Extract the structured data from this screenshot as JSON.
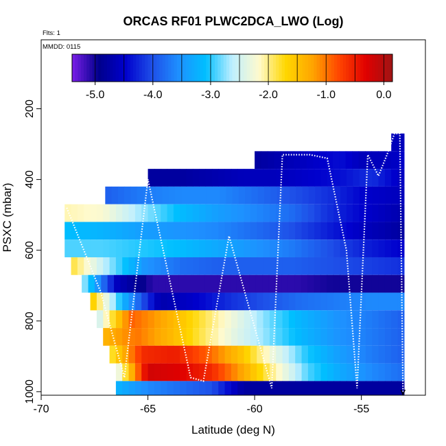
{
  "chart_data": {
    "type": "heatmap",
    "title": "ORCAS RF01 PLWC2DCA_LWO (Log)",
    "flights_note": "Flts: 1",
    "date_note": "MMDD: 0115",
    "xlabel": "Latitude (deg N)",
    "ylabel": "PSXC (mbar)",
    "xlim": [
      -70,
      -52
    ],
    "ylim": [
      1010,
      1
    ],
    "x_ticks": [
      -70,
      -65,
      -60,
      -55
    ],
    "x_tick_labels": [
      "-70",
      "-65",
      "-60",
      "-55"
    ],
    "y_ticks": [
      200,
      400,
      600,
      800,
      1000
    ],
    "y_tick_labels": [
      "200",
      "400",
      "600",
      "800",
      "1000"
    ],
    "colorbar": {
      "min": -5.4,
      "max": 0.15,
      "tick_values": [
        -5.0,
        -4.0,
        -3.0,
        -2.0,
        -1.0,
        0.0
      ],
      "tick_labels": [
        "-5.0",
        "-4.0",
        "-3.0",
        "-2.0",
        "-1.0",
        "0.0"
      ],
      "divisions": [
        -5.0,
        -4.5,
        -4.0,
        -3.5,
        -3.0,
        -2.5,
        -2.0,
        -1.5,
        -1.0,
        -0.5,
        0.0
      ]
    },
    "colors": [
      "#7b1fe8",
      "#00008b",
      "#0000cd",
      "#1e4fe8",
      "#1e90ff",
      "#00bfff",
      "#bfefff",
      "#fffacd",
      "#ffd700",
      "#ffa500",
      "#ff4500",
      "#e00000",
      "#a01414"
    ],
    "grid": false,
    "legend": "colorbar at top of plot area",
    "pressure_bins": [
      {
        "p_min": 270,
        "p_max": 320,
        "lat_start": -53.6,
        "lat_end": -53.0,
        "values": [
          -4.7,
          -4.5,
          -4.7
        ]
      },
      {
        "p_min": 320,
        "p_max": 370,
        "lat_start": -60.0,
        "lat_end": -53.0,
        "values": [
          -4.8,
          -4.7,
          -4.6,
          -4.5,
          -4.4,
          -4.6,
          -4.6,
          -4.5
        ]
      },
      {
        "p_min": 370,
        "p_max": 420,
        "lat_start": -65.0,
        "lat_end": -53.0,
        "values": [
          -4.8,
          -4.8,
          -4.7,
          -4.6,
          -4.6,
          -4.5,
          -4.4,
          -4.2,
          -4.6
        ]
      },
      {
        "p_min": 420,
        "p_max": 470,
        "lat_start": -67.0,
        "lat_end": -53.0,
        "values": [
          -3.9,
          -3.7,
          -3.6,
          -3.6,
          -3.8,
          -4.0,
          -4.2,
          -4.5,
          -4.6
        ]
      },
      {
        "p_min": 470,
        "p_max": 520,
        "lat_start": -68.9,
        "lat_end": -53.0,
        "values": [
          -2.1,
          -2.2,
          -2.7,
          -3.1,
          -3.4,
          -3.6,
          -3.8,
          -4.2,
          -4.5,
          -4.7
        ]
      },
      {
        "p_min": 520,
        "p_max": 570,
        "lat_start": -68.9,
        "lat_end": -53.0,
        "values": [
          -3.1,
          -3.2,
          -3.4,
          -3.5,
          -3.6,
          -3.8,
          -4.0,
          -4.3,
          -4.6,
          -4.8
        ]
      },
      {
        "p_min": 570,
        "p_max": 620,
        "lat_start": -68.9,
        "lat_end": -53.0,
        "values": [
          -2.9,
          -2.9,
          -3.0,
          -3.1,
          -3.3,
          -3.5,
          -3.7,
          -4.0,
          -4.3,
          -4.5
        ]
      },
      {
        "p_min": 620,
        "p_max": 670,
        "lat_start": -68.6,
        "lat_end": -53.0,
        "values": [
          -1.8,
          -2.7,
          -3.5,
          -3.8,
          -3.9,
          -3.9,
          -3.9,
          -4.0,
          -4.1,
          -4.2
        ]
      },
      {
        "p_min": 670,
        "p_max": 720,
        "lat_start": -68.1,
        "lat_end": -53.0,
        "values": [
          -2.6,
          -4.6,
          -5.1,
          -5.1,
          -5.1,
          -5.1,
          -5.1,
          -5.0,
          -5.0,
          -5.0
        ]
      },
      {
        "p_min": 720,
        "p_max": 770,
        "lat_start": -67.7,
        "lat_end": -53.0,
        "values": [
          -1.5,
          -3.3,
          -4.7,
          -4.5,
          -4.2,
          -4.0,
          -3.8,
          -3.7,
          -3.6,
          -3.6
        ]
      },
      {
        "p_min": 770,
        "p_max": 820,
        "lat_start": -67.4,
        "lat_end": -53.0,
        "values": [
          -2.6,
          -0.9,
          -1.3,
          -1.8,
          -2.3,
          -2.8,
          -3.2,
          -3.5,
          -3.7,
          -3.9
        ]
      },
      {
        "p_min": 820,
        "p_max": 870,
        "lat_start": -67.1,
        "lat_end": -53.0,
        "values": [
          -1.4,
          -1.0,
          -1.4,
          -1.9,
          -2.4,
          -2.8,
          -3.2,
          -3.5,
          -3.7,
          -3.9
        ]
      },
      {
        "p_min": 870,
        "p_max": 920,
        "lat_start": -66.8,
        "lat_end": -53.0,
        "values": [
          -1.9,
          -0.6,
          -0.5,
          -0.9,
          -1.5,
          -2.3,
          -3.0,
          -3.4,
          -3.7,
          -3.9
        ]
      },
      {
        "p_min": 920,
        "p_max": 970,
        "lat_start": -66.5,
        "lat_end": -53.0,
        "values": [
          -2.5,
          -0.2,
          -0.3,
          -0.6,
          -1.3,
          -2.1,
          -2.9,
          -3.3,
          -3.6,
          -3.8
        ]
      },
      {
        "p_min": 970,
        "p_max": 1010,
        "lat_start": -66.5,
        "lat_end": -53.0,
        "values": [
          -3.2,
          -3.6,
          -3.8,
          -4.0,
          -4.8,
          -4.8,
          -4.8,
          -4.8,
          -4.8,
          -4.8
        ]
      }
    ],
    "flight_track": {
      "lat": [
        -68.8,
        -67.2,
        -66.1,
        -65.0,
        -63.0,
        -62.4,
        -61.2,
        -59.2,
        -58.7,
        -57.4,
        -56.6,
        -55.7,
        -55.2,
        -54.7,
        -54.2,
        -53.8,
        -53.45,
        -53.2,
        -53.05
      ],
      "pressure": [
        480,
        720,
        960,
        400,
        960,
        970,
        560,
        990,
        330,
        330,
        340,
        600,
        990,
        330,
        390,
        330,
        270,
        270,
        1000
      ]
    }
  }
}
